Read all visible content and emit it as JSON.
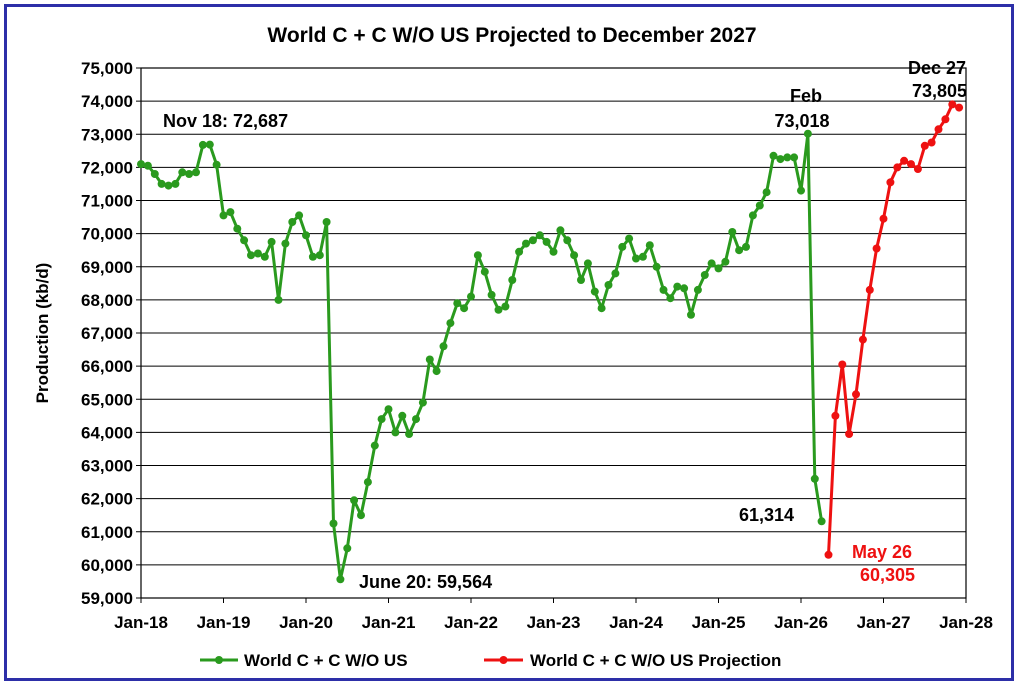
{
  "chart_data": {
    "type": "line",
    "title": "World C + C W/O US Projected to December 2027",
    "xlabel": "",
    "ylabel": "Production (kb/d)",
    "ylim": [
      59000,
      75000
    ],
    "y_ticks": [
      "59,000",
      "60,000",
      "61,000",
      "62,000",
      "63,000",
      "64,000",
      "65,000",
      "66,000",
      "67,000",
      "68,000",
      "69,000",
      "70,000",
      "71,000",
      "72,000",
      "73,000",
      "74,000",
      "75,000"
    ],
    "x_ticks": [
      "Jan-18",
      "Jan-19",
      "Jan-20",
      "Jan-21",
      "Jan-22",
      "Jan-23",
      "Jan-24",
      "Jan-25",
      "Jan-26",
      "Jan-27",
      "Jan-28"
    ],
    "grid": true,
    "legend_position": "bottom",
    "colors": {
      "actual": "#2a9a1e",
      "projection": "#ee1111",
      "border": "#2d2fa8"
    },
    "series": [
      {
        "name": "World C + C W/O US",
        "start_month": "Jan-18",
        "values": [
          72100,
          72050,
          71800,
          71500,
          71450,
          71500,
          71850,
          71800,
          71850,
          72680,
          72687,
          72080,
          70550,
          70650,
          70150,
          69800,
          69350,
          69400,
          69300,
          69750,
          68000,
          69700,
          70350,
          70550,
          69950,
          69300,
          69350,
          70350,
          61250,
          59564,
          60500,
          61950,
          61500,
          62500,
          63600,
          64400,
          64700,
          64000,
          64500,
          63950,
          64400,
          64900,
          66200,
          65850,
          66600,
          67300,
          67900,
          67750,
          68100,
          69350,
          68850,
          68150,
          67700,
          67800,
          68600,
          69450,
          69700,
          69800,
          69950,
          69750,
          69450,
          70100,
          69800,
          69350,
          68600,
          69100,
          68250,
          67750,
          68450,
          68800,
          69600,
          69850,
          69250,
          69300,
          69650,
          69000,
          68300,
          68050,
          68400,
          68350,
          67550,
          68300,
          68750,
          69100,
          68950,
          69150,
          70050,
          69500,
          69600,
          70550,
          70850,
          71250,
          72350,
          72250,
          72300,
          72300,
          71300,
          73018,
          62600,
          61314
        ]
      },
      {
        "name": "World C + C W/O US Projection",
        "start_month": "May-26",
        "values": [
          60305,
          64500,
          66050,
          63950,
          65150,
          66800,
          68300,
          69550,
          70450,
          71550,
          72000,
          72200,
          72100,
          71950,
          72650,
          72750,
          73150,
          73450,
          73900,
          73805
        ]
      }
    ],
    "annotations": [
      {
        "text": "Nov 18: 72,687",
        "color": "#000000"
      },
      {
        "text": "June 20: 59,564",
        "color": "#000000"
      },
      {
        "text": "Feb",
        "color": "#000000"
      },
      {
        "text": "73,018",
        "color": "#000000"
      },
      {
        "text": "61,314",
        "color": "#000000"
      },
      {
        "text": "Dec 27",
        "color": "#000000"
      },
      {
        "text": "73,805",
        "color": "#000000"
      },
      {
        "text": "May 26",
        "color": "#ee1111"
      },
      {
        "text": "60,305",
        "color": "#ee1111"
      }
    ]
  }
}
